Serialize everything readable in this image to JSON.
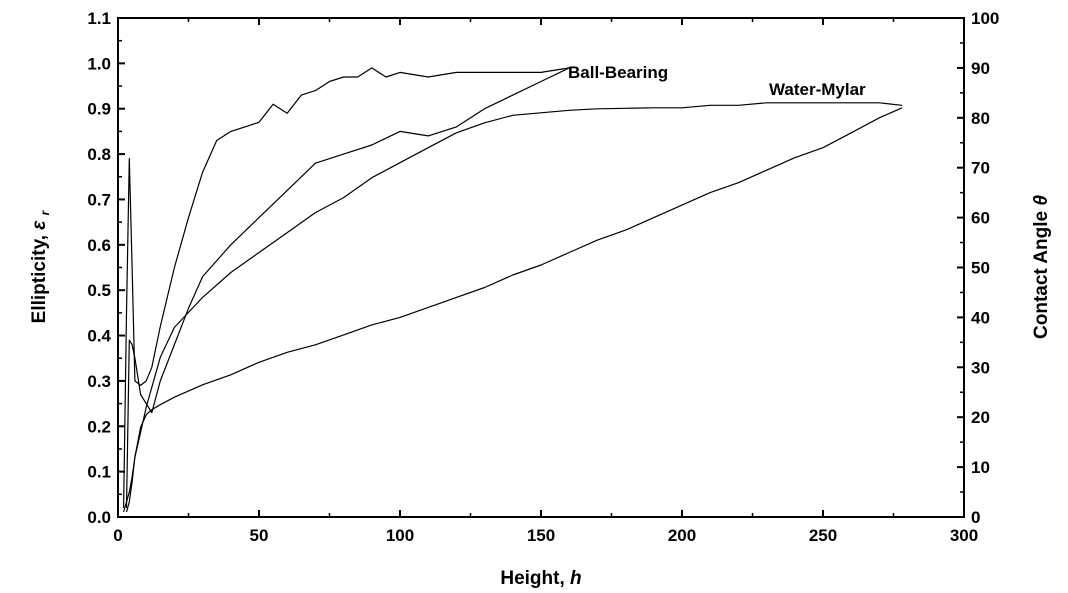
{
  "chart_data": {
    "type": "line",
    "xlabel": "Height,",
    "xlabel_var": "h",
    "ylabel": "Ellipticity,",
    "ylabel_var": "ε",
    "ylabel_sub": "r",
    "y2label": "Contact Angle",
    "y2label_var": "θ",
    "xlim": [
      0,
      300
    ],
    "ylim": [
      0,
      1.1
    ],
    "y2lim": [
      0,
      100
    ],
    "xticks": [
      "0",
      "50",
      "100",
      "150",
      "200",
      "250",
      "300"
    ],
    "yticks": [
      "0.0",
      "0.1",
      "0.2",
      "0.3",
      "0.4",
      "0.5",
      "0.6",
      "0.7",
      "0.8",
      "0.9",
      "1.0",
      "1.1"
    ],
    "y2ticks": [
      "0",
      "10",
      "20",
      "30",
      "40",
      "50",
      "60",
      "70",
      "80",
      "90",
      "100"
    ],
    "grid": false,
    "annotations": [
      {
        "text": "Ball-Bearing",
        "x": 163,
        "y": 0.99
      },
      {
        "text": "Water-Mylar",
        "x": 235,
        "y": 0.93
      }
    ],
    "series": [
      {
        "axis": "left",
        "x": [
          2,
          3,
          4,
          5,
          6,
          8,
          10,
          12,
          15,
          20,
          25,
          30,
          35,
          40,
          45,
          50,
          55,
          60,
          65,
          70,
          75,
          80,
          85,
          90,
          95,
          100,
          110,
          120,
          130,
          140,
          150,
          160
        ],
        "y": [
          0.02,
          0.45,
          0.79,
          0.55,
          0.3,
          0.29,
          0.3,
          0.33,
          0.42,
          0.55,
          0.66,
          0.76,
          0.83,
          0.85,
          0.86,
          0.87,
          0.91,
          0.89,
          0.93,
          0.94,
          0.96,
          0.97,
          0.97,
          0.99,
          0.97,
          0.98,
          0.97,
          0.98,
          0.98,
          0.98,
          0.98,
          0.99
        ]
      },
      {
        "axis": "left",
        "x": [
          160,
          150,
          140,
          130,
          120,
          110,
          100,
          90,
          80,
          70,
          60,
          50,
          40,
          30,
          25,
          20,
          15,
          12,
          10,
          8,
          6,
          5,
          4,
          3
        ],
        "y": [
          0.99,
          0.96,
          0.93,
          0.9,
          0.86,
          0.84,
          0.85,
          0.82,
          0.8,
          0.78,
          0.72,
          0.66,
          0.6,
          0.53,
          0.46,
          0.38,
          0.3,
          0.23,
          0.25,
          0.27,
          0.35,
          0.38,
          0.39,
          0.02
        ]
      },
      {
        "axis": "right",
        "x": [
          2,
          3,
          4,
          5,
          6,
          8,
          10,
          15,
          20,
          25,
          30,
          40,
          50,
          60,
          70,
          80,
          90,
          100,
          110,
          120,
          130,
          140,
          150,
          160,
          170,
          180,
          190,
          200,
          210,
          220,
          230,
          240,
          250,
          260,
          270,
          278
        ],
        "y": [
          1,
          3,
          5,
          8,
          12,
          17,
          22,
          32,
          38,
          41,
          44,
          49,
          53,
          57,
          61,
          64,
          68,
          71,
          74,
          77,
          79,
          80.5,
          81,
          81.5,
          81.8,
          81.9,
          82,
          82,
          82.5,
          82.5,
          83,
          83,
          83,
          83,
          83,
          82.5
        ]
      },
      {
        "axis": "right",
        "x": [
          278,
          270,
          260,
          250,
          240,
          230,
          220,
          210,
          200,
          190,
          180,
          170,
          160,
          150,
          140,
          130,
          120,
          110,
          100,
          90,
          80,
          70,
          60,
          50,
          40,
          30,
          20,
          15,
          12,
          10,
          8,
          6,
          5,
          4,
          3
        ],
        "y": [
          82,
          80,
          77,
          74,
          72,
          69.5,
          67,
          65,
          62.5,
          60,
          57.5,
          55.5,
          53,
          50.5,
          48.5,
          46,
          44,
          42,
          40,
          38.5,
          36.5,
          34.5,
          33,
          31,
          28.5,
          26.5,
          24,
          22.5,
          21.5,
          20.5,
          18,
          12,
          7,
          3,
          1
        ]
      }
    ]
  }
}
